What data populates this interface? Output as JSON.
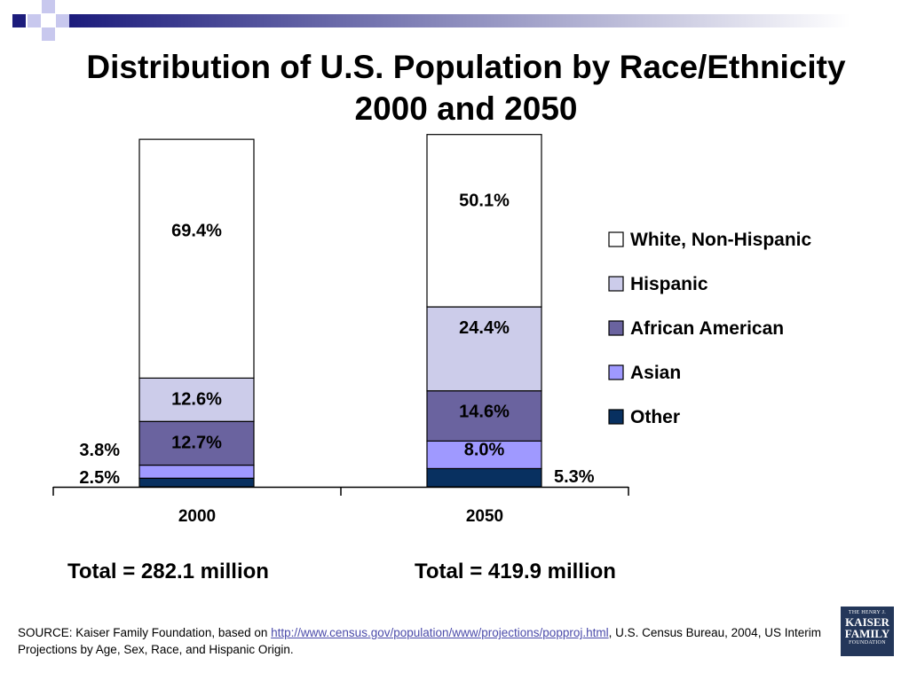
{
  "colors": {
    "white": "#ffffff",
    "hispanic": "#ccccea",
    "african_american": "#6a639f",
    "asian": "#9f99ff",
    "other": "#083060",
    "deco_dark": "#1c1c7c",
    "deco_light": "#c8c8ee"
  },
  "chart_data": {
    "type": "bar",
    "stacked": true,
    "title": "Distribution of U.S. Population by Race/Ethnicity 2000 and 2050",
    "title_lines": [
      "Distribution of U.S. Population by Race/Ethnicity",
      "2000 and 2050"
    ],
    "categories": [
      "2000",
      "2050"
    ],
    "ylim": [
      0,
      100
    ],
    "series": [
      {
        "name": "Other",
        "values": [
          2.5,
          5.3
        ],
        "labels": [
          "2.5%",
          "5.3%"
        ]
      },
      {
        "name": "Asian",
        "values": [
          3.8,
          8.0
        ],
        "labels": [
          "3.8%",
          "8.0%"
        ]
      },
      {
        "name": "African American",
        "values": [
          12.7,
          14.6
        ],
        "labels": [
          "12.7%",
          "14.6%"
        ]
      },
      {
        "name": "Hispanic",
        "values": [
          12.6,
          24.4
        ],
        "labels": [
          "12.6%",
          "24.4%"
        ]
      },
      {
        "name": "White, Non-Hispanic",
        "values": [
          69.4,
          50.1
        ],
        "labels": [
          "69.4%",
          "50.1%"
        ]
      }
    ],
    "legend": [
      "White, Non-Hispanic",
      "Hispanic",
      "African American",
      "Asian",
      "Other"
    ],
    "legend_position": "right"
  },
  "totals": [
    "Total = 282.1 million",
    "Total = 419.9 million"
  ],
  "source": {
    "prefix": "SOURCE: Kaiser Family Foundation, based on ",
    "link": "http://www.census.gov/population/www/projections/popproj.html",
    "suffix": ", U.S. Census Bureau, 2004, US Interim Projections by Age, Sex, Race, and Hispanic Origin."
  },
  "logo": {
    "line1": "THE HENRY J.",
    "line2": "KAISER",
    "line3": "FAMILY",
    "line4": "FOUNDATION"
  }
}
